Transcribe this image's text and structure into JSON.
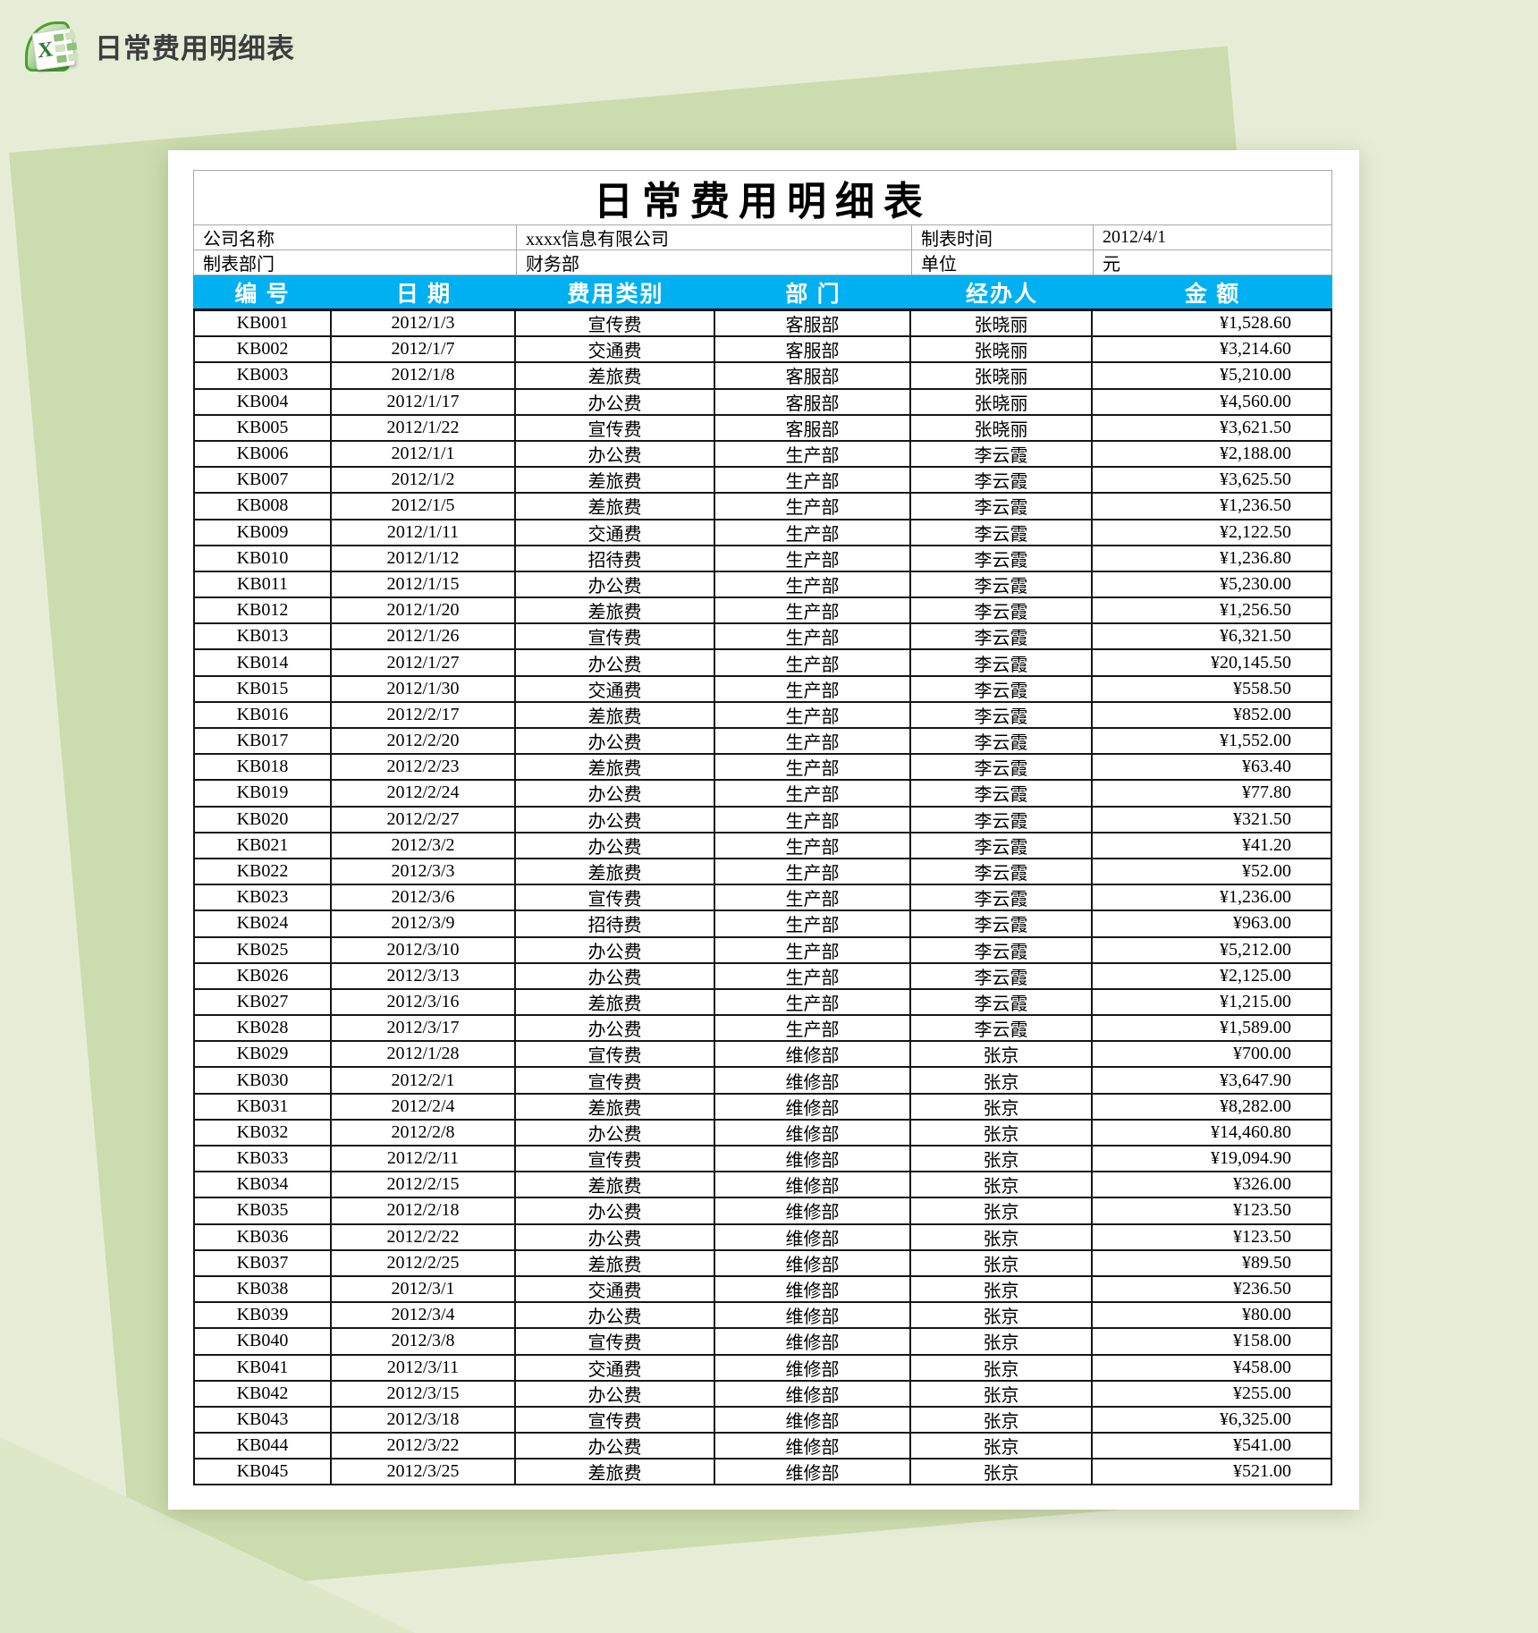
{
  "page": {
    "title": "日常费用明细表",
    "icon": "excel-icon",
    "icon_letter": "X"
  },
  "sheet": {
    "title": "日常费用明细表",
    "info": {
      "company_label": "公司名称",
      "company_value": "xxxx信息有限公司",
      "made_time_label": "制表时间",
      "made_time_value": "2012/4/1",
      "dept_label": "制表部门",
      "dept_value": "财务部",
      "unit_label": "单位",
      "unit_value": "元"
    },
    "columns": [
      "编  号",
      "日  期",
      "费用类别",
      "部  门",
      "经办人",
      "金  额"
    ],
    "rows": [
      [
        "KB001",
        "2012/1/3",
        "宣传费",
        "客服部",
        "张晓丽",
        "¥1,528.60"
      ],
      [
        "KB002",
        "2012/1/7",
        "交通费",
        "客服部",
        "张晓丽",
        "¥3,214.60"
      ],
      [
        "KB003",
        "2012/1/8",
        "差旅费",
        "客服部",
        "张晓丽",
        "¥5,210.00"
      ],
      [
        "KB004",
        "2012/1/17",
        "办公费",
        "客服部",
        "张晓丽",
        "¥4,560.00"
      ],
      [
        "KB005",
        "2012/1/22",
        "宣传费",
        "客服部",
        "张晓丽",
        "¥3,621.50"
      ],
      [
        "KB006",
        "2012/1/1",
        "办公费",
        "生产部",
        "李云霞",
        "¥2,188.00"
      ],
      [
        "KB007",
        "2012/1/2",
        "差旅费",
        "生产部",
        "李云霞",
        "¥3,625.50"
      ],
      [
        "KB008",
        "2012/1/5",
        "差旅费",
        "生产部",
        "李云霞",
        "¥1,236.50"
      ],
      [
        "KB009",
        "2012/1/11",
        "交通费",
        "生产部",
        "李云霞",
        "¥2,122.50"
      ],
      [
        "KB010",
        "2012/1/12",
        "招待费",
        "生产部",
        "李云霞",
        "¥1,236.80"
      ],
      [
        "KB011",
        "2012/1/15",
        "办公费",
        "生产部",
        "李云霞",
        "¥5,230.00"
      ],
      [
        "KB012",
        "2012/1/20",
        "差旅费",
        "生产部",
        "李云霞",
        "¥1,256.50"
      ],
      [
        "KB013",
        "2012/1/26",
        "宣传费",
        "生产部",
        "李云霞",
        "¥6,321.50"
      ],
      [
        "KB014",
        "2012/1/27",
        "办公费",
        "生产部",
        "李云霞",
        "¥20,145.50"
      ],
      [
        "KB015",
        "2012/1/30",
        "交通费",
        "生产部",
        "李云霞",
        "¥558.50"
      ],
      [
        "KB016",
        "2012/2/17",
        "差旅费",
        "生产部",
        "李云霞",
        "¥852.00"
      ],
      [
        "KB017",
        "2012/2/20",
        "办公费",
        "生产部",
        "李云霞",
        "¥1,552.00"
      ],
      [
        "KB018",
        "2012/2/23",
        "差旅费",
        "生产部",
        "李云霞",
        "¥63.40"
      ],
      [
        "KB019",
        "2012/2/24",
        "办公费",
        "生产部",
        "李云霞",
        "¥77.80"
      ],
      [
        "KB020",
        "2012/2/27",
        "办公费",
        "生产部",
        "李云霞",
        "¥321.50"
      ],
      [
        "KB021",
        "2012/3/2",
        "办公费",
        "生产部",
        "李云霞",
        "¥41.20"
      ],
      [
        "KB022",
        "2012/3/3",
        "差旅费",
        "生产部",
        "李云霞",
        "¥52.00"
      ],
      [
        "KB023",
        "2012/3/6",
        "宣传费",
        "生产部",
        "李云霞",
        "¥1,236.00"
      ],
      [
        "KB024",
        "2012/3/9",
        "招待费",
        "生产部",
        "李云霞",
        "¥963.00"
      ],
      [
        "KB025",
        "2012/3/10",
        "办公费",
        "生产部",
        "李云霞",
        "¥5,212.00"
      ],
      [
        "KB026",
        "2012/3/13",
        "办公费",
        "生产部",
        "李云霞",
        "¥2,125.00"
      ],
      [
        "KB027",
        "2012/3/16",
        "差旅费",
        "生产部",
        "李云霞",
        "¥1,215.00"
      ],
      [
        "KB028",
        "2012/3/17",
        "办公费",
        "生产部",
        "李云霞",
        "¥1,589.00"
      ],
      [
        "KB029",
        "2012/1/28",
        "宣传费",
        "维修部",
        "张京",
        "¥700.00"
      ],
      [
        "KB030",
        "2012/2/1",
        "宣传费",
        "维修部",
        "张京",
        "¥3,647.90"
      ],
      [
        "KB031",
        "2012/2/4",
        "差旅费",
        "维修部",
        "张京",
        "¥8,282.00"
      ],
      [
        "KB032",
        "2012/2/8",
        "办公费",
        "维修部",
        "张京",
        "¥14,460.80"
      ],
      [
        "KB033",
        "2012/2/11",
        "宣传费",
        "维修部",
        "张京",
        "¥19,094.90"
      ],
      [
        "KB034",
        "2012/2/15",
        "差旅费",
        "维修部",
        "张京",
        "¥326.00"
      ],
      [
        "KB035",
        "2012/2/18",
        "办公费",
        "维修部",
        "张京",
        "¥123.50"
      ],
      [
        "KB036",
        "2012/2/22",
        "办公费",
        "维修部",
        "张京",
        "¥123.50"
      ],
      [
        "KB037",
        "2012/2/25",
        "差旅费",
        "维修部",
        "张京",
        "¥89.50"
      ],
      [
        "KB038",
        "2012/3/1",
        "交通费",
        "维修部",
        "张京",
        "¥236.50"
      ],
      [
        "KB039",
        "2012/3/4",
        "办公费",
        "维修部",
        "张京",
        "¥80.00"
      ],
      [
        "KB040",
        "2012/3/8",
        "宣传费",
        "维修部",
        "张京",
        "¥158.00"
      ],
      [
        "KB041",
        "2012/3/11",
        "交通费",
        "维修部",
        "张京",
        "¥458.00"
      ],
      [
        "KB042",
        "2012/3/15",
        "办公费",
        "维修部",
        "张京",
        "¥255.00"
      ],
      [
        "KB043",
        "2012/3/18",
        "宣传费",
        "维修部",
        "张京",
        "¥6,325.00"
      ],
      [
        "KB044",
        "2012/3/22",
        "办公费",
        "维修部",
        "张京",
        "¥541.00"
      ],
      [
        "KB045",
        "2012/3/25",
        "差旅费",
        "维修部",
        "张京",
        "¥521.00"
      ]
    ]
  },
  "colors": {
    "page_bg": "#e6edd7",
    "shape_green": "#ccdcae",
    "shape_light": "#dde8c9",
    "header_bg": "#00b0f0",
    "header_text": "#ffffff",
    "excel_green": "#2f7a32"
  }
}
